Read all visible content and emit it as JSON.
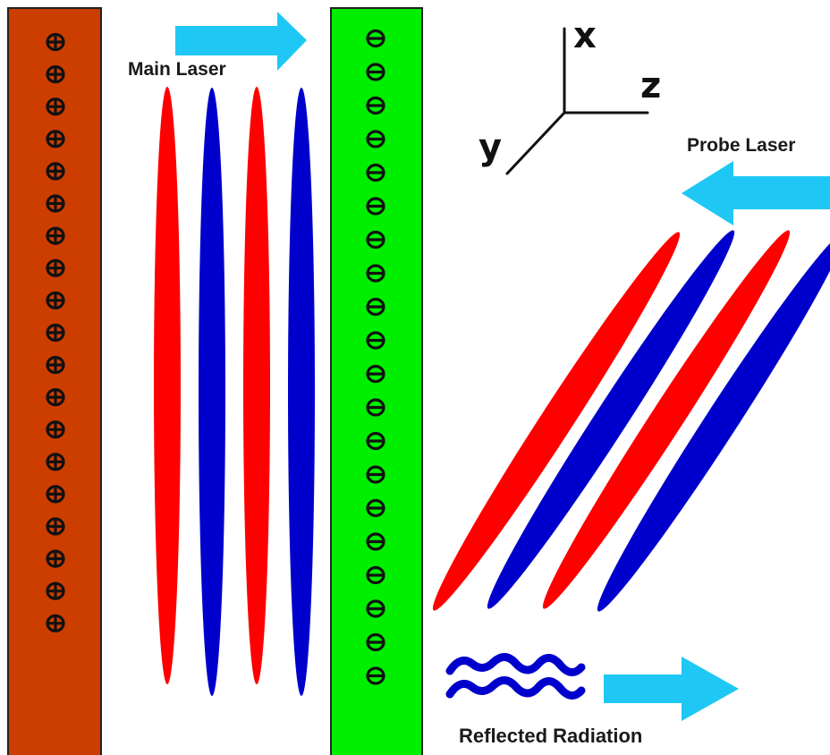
{
  "labels": {
    "main_laser": "Main Laser",
    "probe_laser": "Probe Laser",
    "reflected_radiation": "Reflected Radiation"
  },
  "axes": {
    "x": "x",
    "y": "y",
    "z": "z"
  },
  "ion_layer": {
    "color": "#cc3d00",
    "symbol": "⊕",
    "count": 19
  },
  "electron_layer": {
    "color": "#00ee00",
    "symbol": "⊖",
    "count": 20
  },
  "colors": {
    "pulse_red": "#ff0000",
    "pulse_blue": "#0000cc",
    "arrow": "#1fc8f4"
  }
}
